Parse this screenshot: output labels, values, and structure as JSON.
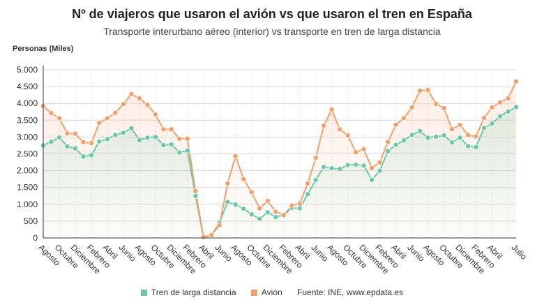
{
  "chart_data": {
    "type": "line",
    "title": "Nº de viajeros que usaron el avión vs que usaron el tren en España",
    "subtitle": "Transporte interurbano aéreo (interior) vs transporte en tren de larga distancia",
    "ylabel": "Personas (Miles)",
    "xlabel": "",
    "ylim": [
      0,
      5000
    ],
    "yticks": [
      0,
      500,
      1000,
      1500,
      2000,
      2500,
      3000,
      3500,
      4000,
      4500,
      5000
    ],
    "ytick_labels": [
      "0",
      "500",
      "1.000",
      "1.500",
      "2.000",
      "2.500",
      "3.000",
      "3.500",
      "4.000",
      "4.500",
      "5.000"
    ],
    "grid": true,
    "legend_position": "bottom",
    "x_tick_labels": [
      {
        "i": 0,
        "label": "Agosto"
      },
      {
        "i": 2,
        "label": "Octubre"
      },
      {
        "i": 4,
        "label": "Diciembre"
      },
      {
        "i": 6,
        "label": "Febrero"
      },
      {
        "i": 8,
        "label": "Abril"
      },
      {
        "i": 10,
        "label": "Junio"
      },
      {
        "i": 12,
        "label": "Agosto"
      },
      {
        "i": 14,
        "label": "Octubre"
      },
      {
        "i": 16,
        "label": "Diciembre"
      },
      {
        "i": 18,
        "label": "Febrero"
      },
      {
        "i": 20,
        "label": "Abril"
      },
      {
        "i": 22,
        "label": "Junio"
      },
      {
        "i": 24,
        "label": "Agosto"
      },
      {
        "i": 26,
        "label": "Octubre"
      },
      {
        "i": 28,
        "label": "Diciembre"
      },
      {
        "i": 30,
        "label": "Febrero"
      },
      {
        "i": 32,
        "label": "Abril"
      },
      {
        "i": 34,
        "label": "Junio"
      },
      {
        "i": 36,
        "label": "Agosto"
      },
      {
        "i": 38,
        "label": "Octubre"
      },
      {
        "i": 40,
        "label": "Diciembre"
      },
      {
        "i": 42,
        "label": "Febrero"
      },
      {
        "i": 44,
        "label": "Abril"
      },
      {
        "i": 46,
        "label": "Junio"
      },
      {
        "i": 48,
        "label": "Agosto"
      },
      {
        "i": 50,
        "label": "Octubre"
      },
      {
        "i": 52,
        "label": "Diciembre"
      },
      {
        "i": 54,
        "label": "Febrero"
      },
      {
        "i": 56,
        "label": "Abril"
      },
      {
        "i": 59,
        "label": "Julio"
      }
    ],
    "series": [
      {
        "name": "Tren de larga distancia",
        "color": "#6cc7a9",
        "values": [
          2750,
          2860,
          2990,
          2720,
          2660,
          2420,
          2460,
          2870,
          2940,
          3060,
          3130,
          3260,
          2910,
          2980,
          3000,
          2760,
          2780,
          2540,
          2600,
          1250,
          10,
          80,
          460,
          1070,
          990,
          870,
          700,
          570,
          760,
          620,
          680,
          890,
          880,
          1300,
          1720,
          2110,
          2070,
          2050,
          2170,
          2180,
          2150,
          1730,
          2000,
          2580,
          2770,
          2900,
          3060,
          3180,
          2980,
          3010,
          3050,
          2840,
          2980,
          2730,
          2700,
          3270,
          3400,
          3620,
          3760,
          3890
        ]
      },
      {
        "name": "Avión",
        "color": "#f0a06a",
        "values": [
          3920,
          3710,
          3560,
          3110,
          3100,
          2850,
          2820,
          3420,
          3560,
          3720,
          3980,
          4280,
          4150,
          3960,
          3670,
          3230,
          3230,
          2950,
          2950,
          1390,
          30,
          90,
          380,
          1620,
          2430,
          1750,
          1360,
          880,
          1100,
          780,
          680,
          960,
          1020,
          1620,
          2380,
          3340,
          3810,
          3230,
          3050,
          2550,
          2640,
          2080,
          2250,
          2850,
          3370,
          3560,
          3880,
          4380,
          4400,
          3990,
          3860,
          3240,
          3360,
          3060,
          3020,
          3570,
          3880,
          4030,
          4150,
          4650
        ]
      }
    ],
    "source": "Fuente: INE, www.epdata.es"
  }
}
